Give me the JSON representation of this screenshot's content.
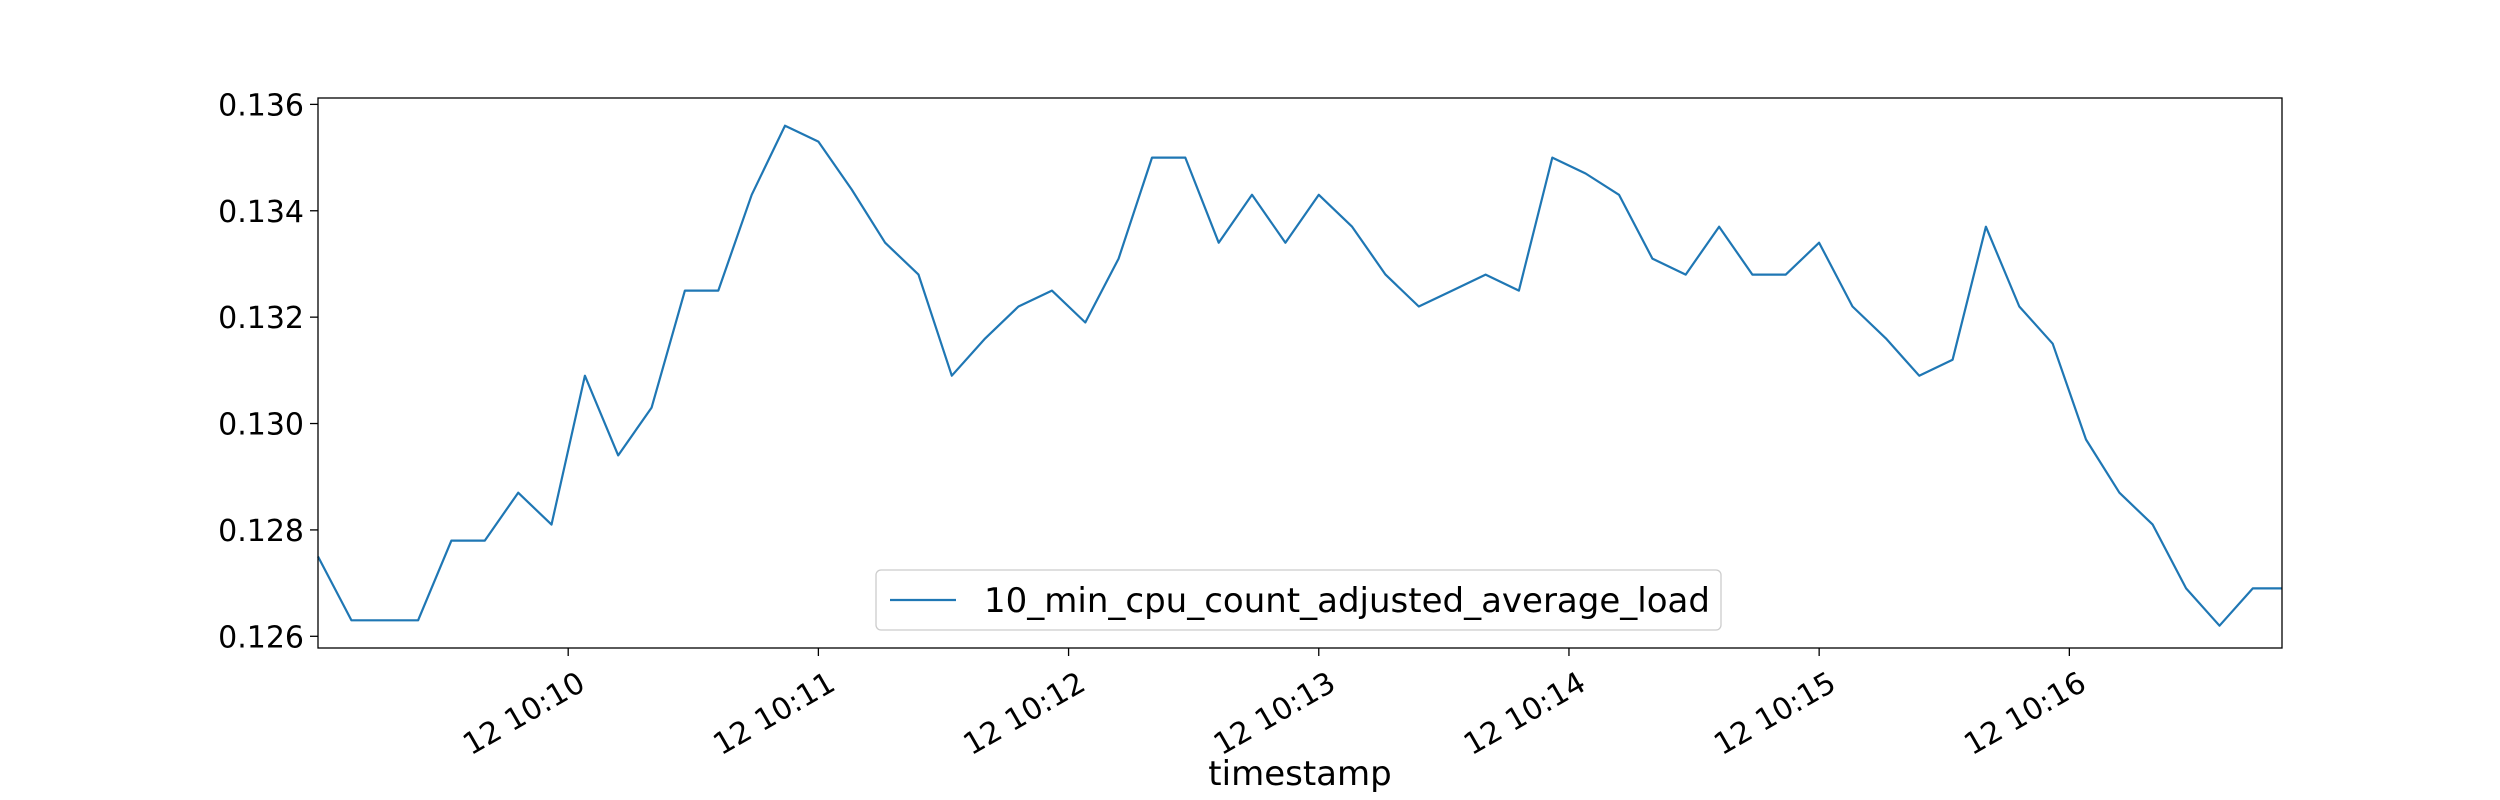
{
  "chart_data": {
    "type": "line",
    "title": "",
    "xlabel": "timestamp",
    "ylabel": "",
    "legend_placement": "lower center",
    "grid": false,
    "color": "#1f77b4",
    "xlim": [
      "12 10:09:00",
      "12 10:16:51"
    ],
    "ylim": [
      0.12578,
      0.13612
    ],
    "x_ticks": [
      "12 10:10",
      "12 10:11",
      "12 10:12",
      "12 10:13",
      "12 10:14",
      "12 10:15",
      "12 10:16"
    ],
    "y_ticks": [
      "0.126",
      "0.128",
      "0.130",
      "0.132",
      "0.134",
      "0.136"
    ],
    "series": [
      {
        "name": "10_min_cpu_count_adjusted_average_load",
        "x": [
          "12 10:09:00",
          "12 10:09:08",
          "12 10:09:16",
          "12 10:09:24",
          "12 10:09:32",
          "12 10:09:40",
          "12 10:09:48",
          "12 10:09:56",
          "12 10:10:04",
          "12 10:10:12",
          "12 10:10:20",
          "12 10:10:28",
          "12 10:10:36",
          "12 10:10:44",
          "12 10:10:52",
          "12 10:11:00",
          "12 10:11:08",
          "12 10:11:16",
          "12 10:11:24",
          "12 10:11:32",
          "12 10:11:40",
          "12 10:11:48",
          "12 10:11:56",
          "12 10:12:04",
          "12 10:12:12",
          "12 10:12:20",
          "12 10:12:28",
          "12 10:12:36",
          "12 10:12:44",
          "12 10:12:52",
          "12 10:13:00",
          "12 10:13:08",
          "12 10:13:16",
          "12 10:13:24",
          "12 10:13:32",
          "12 10:13:40",
          "12 10:13:48",
          "12 10:13:56",
          "12 10:14:04",
          "12 10:14:12",
          "12 10:14:20",
          "12 10:14:28",
          "12 10:14:36",
          "12 10:14:44",
          "12 10:14:52",
          "12 10:15:00",
          "12 10:15:08",
          "12 10:15:16",
          "12 10:15:24",
          "12 10:15:32",
          "12 10:15:40",
          "12 10:15:48",
          "12 10:15:56",
          "12 10:16:04",
          "12 10:16:12",
          "12 10:16:20",
          "12 10:16:28",
          "12 10:16:36",
          "12 10:16:44",
          "12 10:16:51"
        ],
        "y": [
          0.1275,
          0.1263,
          0.1263,
          0.1263,
          0.1278,
          0.1278,
          0.1287,
          0.1281,
          0.1309,
          0.1294,
          0.1303,
          0.1325,
          0.1325,
          0.1343,
          0.1356,
          0.1353,
          0.1344,
          0.1334,
          0.1328,
          0.1309,
          0.1316,
          0.1322,
          0.1325,
          0.1319,
          0.1331,
          0.135,
          0.135,
          0.1334,
          0.1343,
          0.1334,
          0.1343,
          0.1337,
          0.1328,
          0.1322,
          0.1325,
          0.1328,
          0.1325,
          0.135,
          0.1347,
          0.1343,
          0.1331,
          0.1328,
          0.1337,
          0.1328,
          0.1328,
          0.1334,
          0.1322,
          0.1316,
          0.1309,
          0.1312,
          0.1337,
          0.1322,
          0.1315,
          0.1297,
          0.1287,
          0.1281,
          0.1269,
          0.1262,
          0.1269,
          0.1269
        ]
      }
    ]
  }
}
